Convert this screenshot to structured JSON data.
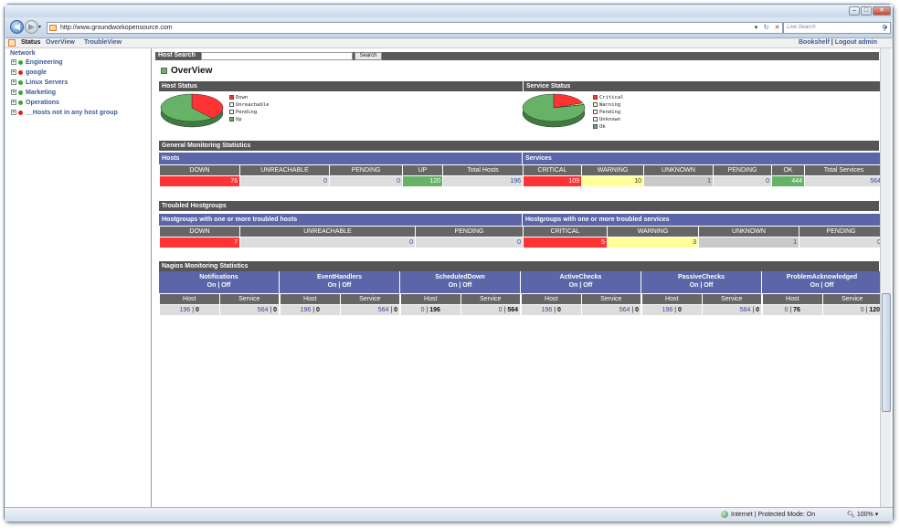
{
  "browser": {
    "url": "http://www.groundworkopensource.com",
    "live_search": "Live Search",
    "zone_text": "Internet | Protected Mode: On",
    "zoom": "100%"
  },
  "topmenu": {
    "status": "Status",
    "overview": "OverView",
    "troubleview": "TroubleView",
    "bookshelf": "Bookshelf",
    "separator": "|",
    "logout": "Logout admin"
  },
  "sidebar": {
    "title": "Network",
    "items": [
      {
        "label": "Engineering",
        "color": "#33aa33"
      },
      {
        "label": "google",
        "color": "#dd2222"
      },
      {
        "label": "Linux Servers",
        "color": "#33aa33"
      },
      {
        "label": "Marketing",
        "color": "#33aa33"
      },
      {
        "label": "Operations",
        "color": "#33aa33"
      },
      {
        "label": "__Hosts not in any host group",
        "color": "#dd2222"
      }
    ]
  },
  "search": {
    "label": "Host Search",
    "button": "Search"
  },
  "page_title": "OverView",
  "host_status": {
    "title": "Host Status",
    "legend": [
      {
        "label": "Down",
        "color": "#ff3333"
      },
      {
        "label": "Unreachable",
        "color": "#ffffff"
      },
      {
        "label": "Pending",
        "color": "#ffffff"
      },
      {
        "label": "Up",
        "color": "#66b266"
      }
    ]
  },
  "service_status": {
    "title": "Service Status",
    "legend": [
      {
        "label": "Critical",
        "color": "#ff3333"
      },
      {
        "label": "Warning",
        "color": "#ffff99"
      },
      {
        "label": "Pending",
        "color": "#ffffff"
      },
      {
        "label": "Unknown",
        "color": "#ffffff"
      },
      {
        "label": "Ok",
        "color": "#66b266"
      }
    ]
  },
  "general": {
    "title": "General Monitoring Statistics",
    "hosts_label": "Hosts",
    "services_label": "Services",
    "hosts_headers": [
      "DOWN",
      "UNREACHABLE",
      "PENDING",
      "UP",
      "Total Hosts"
    ],
    "hosts_values": [
      "76",
      "0",
      "0",
      "120",
      "196"
    ],
    "services_headers": [
      "CRITICAL",
      "WARNING",
      "UNKNOWN",
      "PENDING",
      "OK",
      "Total Services"
    ],
    "services_values": [
      "109",
      "10",
      "1",
      "0",
      "444",
      "564"
    ]
  },
  "troubled": {
    "title": "Troubled Hostgroups",
    "hosts_label": "Hostgroups with one or more troubled hosts",
    "services_label": "Hostgroups with one or more troubled services",
    "hosts_headers": [
      "DOWN",
      "UNREACHABLE",
      "PENDING"
    ],
    "hosts_values": [
      "7",
      "0",
      "0"
    ],
    "services_headers": [
      "CRITICAL",
      "WARNING",
      "UNKNOWN",
      "PENDING"
    ],
    "services_values": [
      "5",
      "3",
      "1",
      "0"
    ]
  },
  "nagios": {
    "title": "Nagios Monitoring Statistics",
    "onoff": "On | Off",
    "host_label": "Host",
    "service_label": "Service",
    "groups": [
      {
        "name": "Notifications",
        "host": [
          "196",
          "0"
        ],
        "service": [
          "564",
          "0"
        ]
      },
      {
        "name": "EventHandlers",
        "host": [
          "196",
          "0"
        ],
        "service": [
          "564",
          "0"
        ]
      },
      {
        "name": "ScheduledDown",
        "host": [
          "0",
          "196"
        ],
        "service": [
          "0",
          "564"
        ]
      },
      {
        "name": "ActiveChecks",
        "host": [
          "196",
          "0"
        ],
        "service": [
          "564",
          "0"
        ]
      },
      {
        "name": "PassiveChecks",
        "host": [
          "196",
          "0"
        ],
        "service": [
          "564",
          "0"
        ]
      },
      {
        "name": "ProblemAcknowledged",
        "host": [
          "0",
          "76"
        ],
        "service": [
          "0",
          "120"
        ]
      }
    ]
  },
  "chart_data": [
    {
      "type": "pie",
      "labels": [
        "Down",
        "Unreachable",
        "Pending",
        "Up"
      ],
      "values": [
        76,
        0,
        0,
        120
      ],
      "colors": [
        "#ff3333",
        "#ffffff",
        "#ffffff",
        "#66b266"
      ]
    },
    {
      "type": "pie",
      "labels": [
        "Critical",
        "Warning",
        "Pending",
        "Unknown",
        "Ok"
      ],
      "values": [
        109,
        10,
        0,
        1,
        444
      ],
      "colors": [
        "#ff3333",
        "#ffff99",
        "#ffffff",
        "#ffffff",
        "#66b266"
      ]
    }
  ]
}
